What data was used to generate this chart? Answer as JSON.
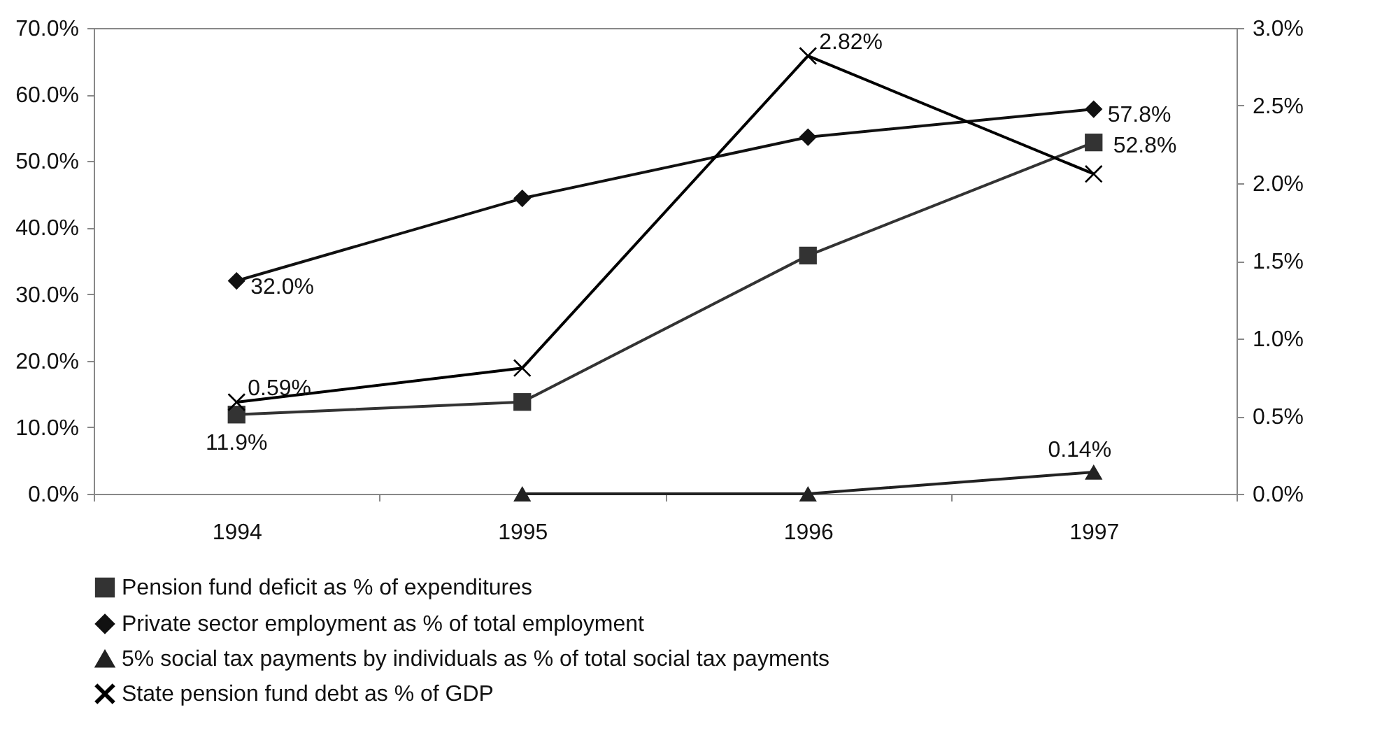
{
  "chart_data": {
    "type": "line",
    "categories": [
      "1994",
      "1995",
      "1996",
      "1997"
    ],
    "ylim": [
      0,
      70
    ],
    "yticks": [
      {
        "value": 0,
        "label": "0.0%"
      },
      {
        "value": 10,
        "label": "10.0%"
      },
      {
        "value": 20,
        "label": "20.0%"
      },
      {
        "value": 30,
        "label": "30.0%"
      },
      {
        "value": 40,
        "label": "40.0%"
      },
      {
        "value": 50,
        "label": "50.0%"
      },
      {
        "value": 60,
        "label": "60.0%"
      },
      {
        "value": 70,
        "label": "70.0%"
      }
    ],
    "y2lim": [
      0,
      3
    ],
    "y2ticks": [
      {
        "value": 0,
        "label": "0.0%"
      },
      {
        "value": 0.5,
        "label": "0.5%"
      },
      {
        "value": 1,
        "label": "1.0%"
      },
      {
        "value": 1.5,
        "label": "1.5%"
      },
      {
        "value": 2,
        "label": "2.0%"
      },
      {
        "value": 2.5,
        "label": "2.5%"
      },
      {
        "value": 3,
        "label": "3.0%"
      }
    ],
    "grid": false,
    "legend": "bottom",
    "series": [
      {
        "name": "Pension fund deficit as % of expenditures",
        "color": "#333333",
        "marker": "square",
        "values": [
          11.9,
          13.8,
          35.8,
          52.8
        ],
        "value_labels": [
          "11.9%",
          null,
          null,
          "52.8%"
        ]
      },
      {
        "name": "Private sector employment as % of total employment",
        "color": "#111111",
        "marker": "diamond",
        "values": [
          32.0,
          44.4,
          53.6,
          57.8
        ],
        "value_labels": [
          "32.0%",
          null,
          null,
          "57.8%"
        ]
      },
      {
        "name": "5% social tax payments by individuals  as % of total social tax payments",
        "color": "#222222",
        "marker": "triangle",
        "axis": "y2",
        "values": [
          null,
          0,
          0,
          0.14
        ],
        "value_labels": [
          null,
          null,
          null,
          "0.14%"
        ]
      },
      {
        "name": "State pension fund debt as % of GDP",
        "color": "#000000",
        "marker": "cross",
        "axis": "y2",
        "values": [
          0.59,
          0.81,
          2.82,
          2.06
        ],
        "value_labels": [
          "0.59%",
          null,
          "2.82%",
          null
        ]
      }
    ]
  }
}
